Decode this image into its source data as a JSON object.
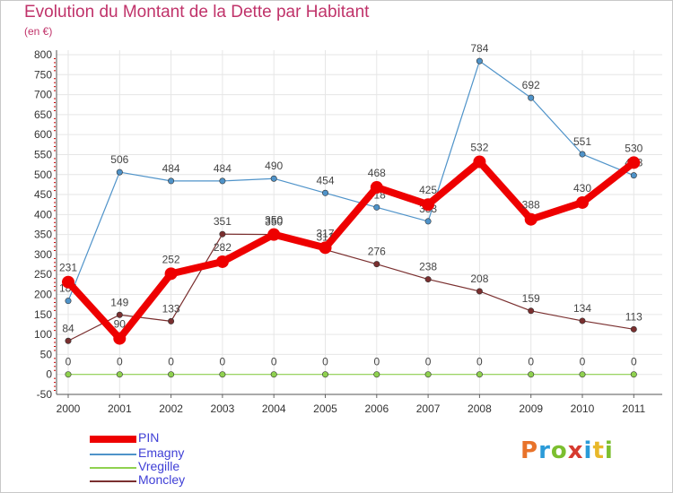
{
  "header": {
    "title": "Evolution du Montant de la Dette par Habitant",
    "unit": "(en €)"
  },
  "logo": {
    "text": "Proxiti",
    "colors": [
      "#e8732a",
      "#2b9bd8",
      "#7cbf2f",
      "#d63a2f",
      "#2b9bd8",
      "#e8b82a",
      "#7cbf2f"
    ]
  },
  "chart_data": {
    "type": "line",
    "title": "Evolution du Montant de la Dette par Habitant",
    "ylabel": "(en €)",
    "xlabel": "",
    "categories": [
      "2000",
      "2001",
      "2002",
      "2003",
      "2004",
      "2005",
      "2006",
      "2007",
      "2008",
      "2009",
      "2010",
      "2011"
    ],
    "ylim": [
      -50,
      800
    ],
    "yticks": [
      "-50",
      "0",
      "50",
      "100",
      "150",
      "200",
      "250",
      "300",
      "350",
      "400",
      "450",
      "500",
      "550",
      "600",
      "650",
      "700",
      "750",
      "800"
    ],
    "grid": true,
    "legend_position": "bottom-left",
    "series": [
      {
        "name": "Emagny",
        "color": "#4f93c9",
        "values": [
          184,
          506,
          484,
          484,
          490,
          454,
          418,
          383,
          784,
          692,
          551,
          498
        ],
        "labels": [
          "184",
          "506",
          "484",
          "484",
          "490",
          "454",
          "418",
          "383",
          "784",
          "692",
          "551",
          "498"
        ]
      },
      {
        "name": "Moncley",
        "color": "#7a2f2f",
        "values": [
          84,
          149,
          133,
          351,
          350,
          312,
          276,
          238,
          208,
          159,
          134,
          113
        ],
        "labels": [
          "84",
          "149",
          "133",
          "351",
          "350",
          "312",
          "276",
          "238",
          "208",
          "159",
          "134",
          "113"
        ]
      },
      {
        "name": "Vregille",
        "color": "#8fd14f",
        "values": [
          0,
          0,
          0,
          0,
          0,
          0,
          0,
          0,
          0,
          0,
          0,
          0
        ],
        "labels": [
          "0",
          "0",
          "0",
          "0",
          "0",
          "0",
          "0",
          "0",
          "0",
          "0",
          "0",
          "0"
        ]
      },
      {
        "name": "PIN",
        "color": "#ee0000",
        "values": [
          231,
          90,
          252,
          282,
          350,
          317,
          468,
          425,
          532,
          388,
          430,
          530
        ],
        "labels": [
          "231",
          "90",
          "252",
          "282",
          "350",
          "317",
          "468",
          "425",
          "532",
          "388",
          "430",
          "530"
        ]
      }
    ],
    "legend": [
      "PIN",
      "Emagny",
      "Vregille",
      "Moncley"
    ]
  }
}
